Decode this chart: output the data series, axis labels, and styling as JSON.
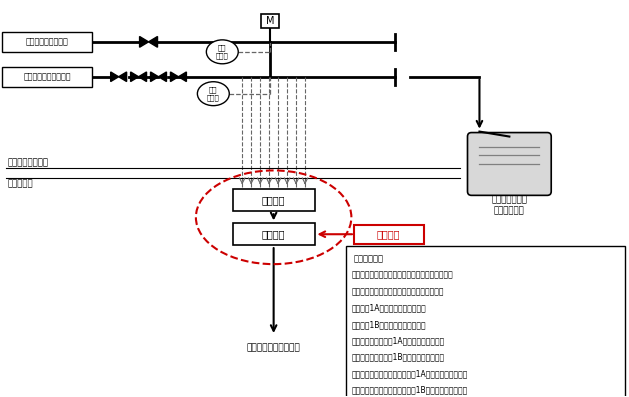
{
  "bg_color": "#ffffff",
  "line_color": "#000000",
  "dashed_color": "#666666",
  "red_color": "#cc0000",
  "signal_box_texts": [
    "発信した信号",
    "「余剑抽出冷却器出口調整弁リークオフ温度高」",
    "「加圧器サージラインドレンライン温度高」",
    "「ループ1Aドレンライン温度高」",
    "「ループ1Bドレンライン温度高」",
    "「余熱除去系出口弁1Aリークオフ温度高」",
    "「余熱除去系出口弁1Bリークオフ温度高」",
    "「余熱除去系原子炉容器入口弁1Aリークオフ温度高」",
    "「余熱除去系原子炉容器入口弁1Bリークオフ温度高」"
  ],
  "label_line1": "余熱除去系出口弁等",
  "label_line2": "ループドレンライン等",
  "label_sensor": "温度\n検出器",
  "label_transmitter": "送信器盤",
  "label_receiver": "受信器盤",
  "label_tank_line1": "格納容器冷却材",
  "label_tank_line2": "ドレンタンク",
  "label_control": "中央制御室（信号）等",
  "label_inside": "原子炉格納容器内",
  "label_outside": "管理区域外",
  "label_motor": "M",
  "label_tokatsu": "当該箇所"
}
